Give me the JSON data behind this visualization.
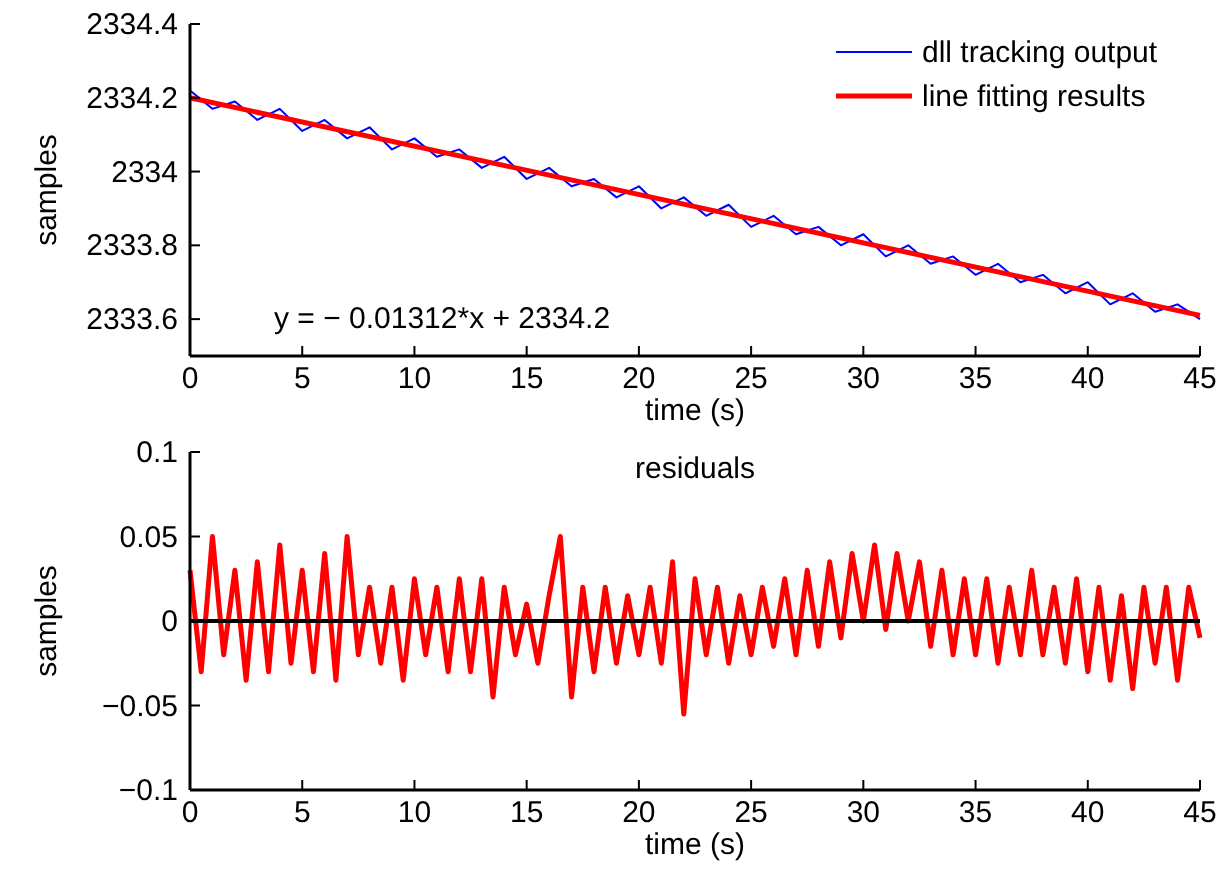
{
  "chart_data": [
    {
      "type": "line",
      "xlabel": "time (s)",
      "ylabel": "samples",
      "xlim": [
        0,
        45
      ],
      "xticks": [
        0,
        5,
        10,
        15,
        20,
        25,
        30,
        35,
        40,
        45
      ],
      "ylim": [
        2333.5,
        2334.4
      ],
      "yticks": [
        2333.6,
        2333.8,
        2334,
        2334.2,
        2334.4
      ],
      "legend": "top right",
      "annotations": [
        "y = − 0.01312*x + 2334.2"
      ],
      "series": [
        {
          "name": "dll tracking output",
          "color": "#0000ff",
          "x": [
            0,
            1,
            2,
            3,
            4,
            5,
            6,
            7,
            8,
            9,
            10,
            11,
            12,
            13,
            14,
            15,
            16,
            17,
            18,
            19,
            20,
            21,
            22,
            23,
            24,
            25,
            26,
            27,
            28,
            29,
            30,
            31,
            32,
            33,
            34,
            35,
            36,
            37,
            38,
            39,
            40,
            41,
            42,
            43,
            44,
            45
          ],
          "values": [
            2334.22,
            2334.17,
            2334.19,
            2334.14,
            2334.17,
            2334.11,
            2334.14,
            2334.09,
            2334.12,
            2334.06,
            2334.09,
            2334.04,
            2334.06,
            2334.01,
            2334.04,
            2333.98,
            2334.01,
            2333.96,
            2333.98,
            2333.93,
            2333.96,
            2333.9,
            2333.93,
            2333.88,
            2333.91,
            2333.85,
            2333.88,
            2333.83,
            2333.85,
            2333.8,
            2333.83,
            2333.77,
            2333.8,
            2333.75,
            2333.77,
            2333.72,
            2333.75,
            2333.7,
            2333.72,
            2333.67,
            2333.7,
            2333.64,
            2333.67,
            2333.62,
            2333.64,
            2333.6
          ]
        },
        {
          "name": "line fitting results",
          "color": "#ff0000",
          "x": [
            0,
            45
          ],
          "values": [
            2334.2,
            2333.61
          ]
        }
      ]
    },
    {
      "type": "line",
      "title": "residuals",
      "xlabel": "time (s)",
      "ylabel": "samples",
      "xlim": [
        0,
        45
      ],
      "xticks": [
        0,
        5,
        10,
        15,
        20,
        25,
        30,
        35,
        40,
        45
      ],
      "ylim": [
        -0.1,
        0.1
      ],
      "yticks": [
        {
          "value": -0.1,
          "label": "−0.1"
        },
        {
          "value": -0.05,
          "label": "−0.05"
        },
        0,
        0.05,
        0.1
      ],
      "ref_lines": [
        {
          "axis": "y",
          "value": 0,
          "color": "#000000"
        }
      ],
      "series": [
        {
          "color": "#ff0000",
          "x": [
            0,
            0.5,
            1,
            1.5,
            2,
            2.5,
            3,
            3.5,
            4,
            4.5,
            5,
            5.5,
            6,
            6.5,
            7,
            7.5,
            8,
            8.5,
            9,
            9.5,
            10,
            10.5,
            11,
            11.5,
            12,
            12.5,
            13,
            13.5,
            14,
            14.5,
            15,
            15.5,
            16,
            16.5,
            17,
            17.5,
            18,
            18.5,
            19,
            19.5,
            20,
            20.5,
            21,
            21.5,
            22,
            22.5,
            23,
            23.5,
            24,
            24.5,
            25,
            25.5,
            26,
            26.5,
            27,
            27.5,
            28,
            28.5,
            29,
            29.5,
            30,
            30.5,
            31,
            31.5,
            32,
            32.5,
            33,
            33.5,
            34,
            34.5,
            35,
            35.5,
            36,
            36.5,
            37,
            37.5,
            38,
            38.5,
            39,
            39.5,
            40,
            40.5,
            41,
            41.5,
            42,
            42.5,
            43,
            43.5,
            44,
            44.5,
            45
          ],
          "values": [
            0.03,
            -0.03,
            0.05,
            -0.02,
            0.03,
            -0.035,
            0.035,
            -0.03,
            0.045,
            -0.025,
            0.03,
            -0.03,
            0.04,
            -0.035,
            0.05,
            -0.02,
            0.02,
            -0.025,
            0.02,
            -0.035,
            0.025,
            -0.02,
            0.02,
            -0.03,
            0.025,
            -0.03,
            0.025,
            -0.045,
            0.02,
            -0.02,
            0.01,
            -0.025,
            0.015,
            0.05,
            -0.045,
            0.02,
            -0.03,
            0.02,
            -0.025,
            0.015,
            -0.02,
            0.02,
            -0.025,
            0.035,
            -0.055,
            0.025,
            -0.02,
            0.02,
            -0.025,
            0.015,
            -0.02,
            0.02,
            -0.015,
            0.025,
            -0.02,
            0.03,
            -0.015,
            0.035,
            -0.01,
            0.04,
            0,
            0.045,
            -0.005,
            0.04,
            0,
            0.035,
            -0.015,
            0.03,
            -0.02,
            0.025,
            -0.02,
            0.025,
            -0.025,
            0.02,
            -0.02,
            0.03,
            -0.02,
            0.02,
            -0.025,
            0.025,
            -0.03,
            0.02,
            -0.035,
            0.015,
            -0.04,
            0.02,
            -0.025,
            0.02,
            -0.035,
            0.02,
            -0.01
          ]
        }
      ]
    }
  ]
}
